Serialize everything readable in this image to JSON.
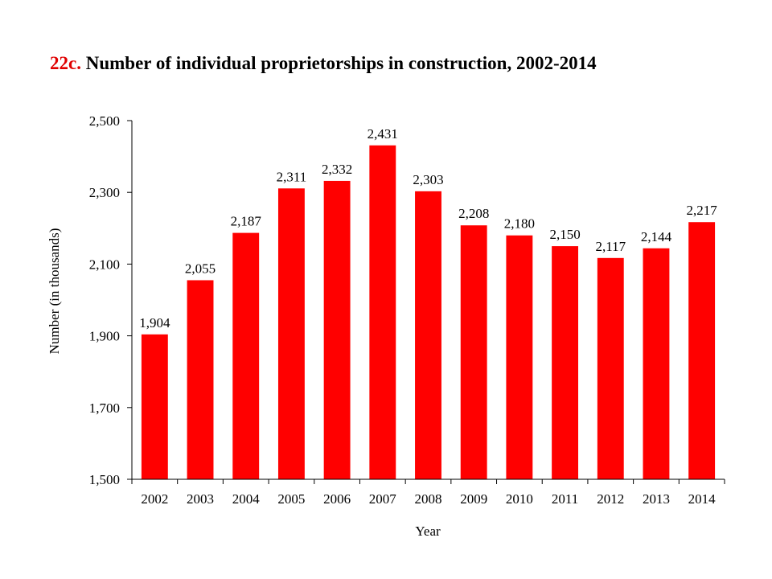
{
  "title": {
    "prefix": "22c.",
    "text": " Number of individual proprietorships in construction, 2002-2014"
  },
  "colors": {
    "bar": "#ff0000",
    "title_prefix": "#e00000",
    "axis": "#000000"
  },
  "chart_data": {
    "type": "bar",
    "title": "22c. Number of individual proprietorships in construction, 2002-2014",
    "xlabel": "Year",
    "ylabel": "Number (in thousands)",
    "categories": [
      "2002",
      "2003",
      "2004",
      "2005",
      "2006",
      "2007",
      "2008",
      "2009",
      "2010",
      "2011",
      "2012",
      "2013",
      "2014"
    ],
    "values": [
      1904,
      2055,
      2187,
      2311,
      2332,
      2431,
      2303,
      2208,
      2180,
      2150,
      2117,
      2144,
      2217
    ],
    "data_labels": [
      "1,904",
      "2,055",
      "2,187",
      "2,311",
      "2,332",
      "2,431",
      "2,303",
      "2,208",
      "2,180",
      "2,150",
      "2,117",
      "2,144",
      "2,217"
    ],
    "ylim": [
      1500,
      2500
    ],
    "yticks": [
      1500,
      1700,
      1900,
      2100,
      2300,
      2500
    ],
    "ytick_labels": [
      "1,500",
      "1,700",
      "1,900",
      "2,100",
      "2,300",
      "2,500"
    ],
    "grid": false,
    "legend": "none"
  }
}
